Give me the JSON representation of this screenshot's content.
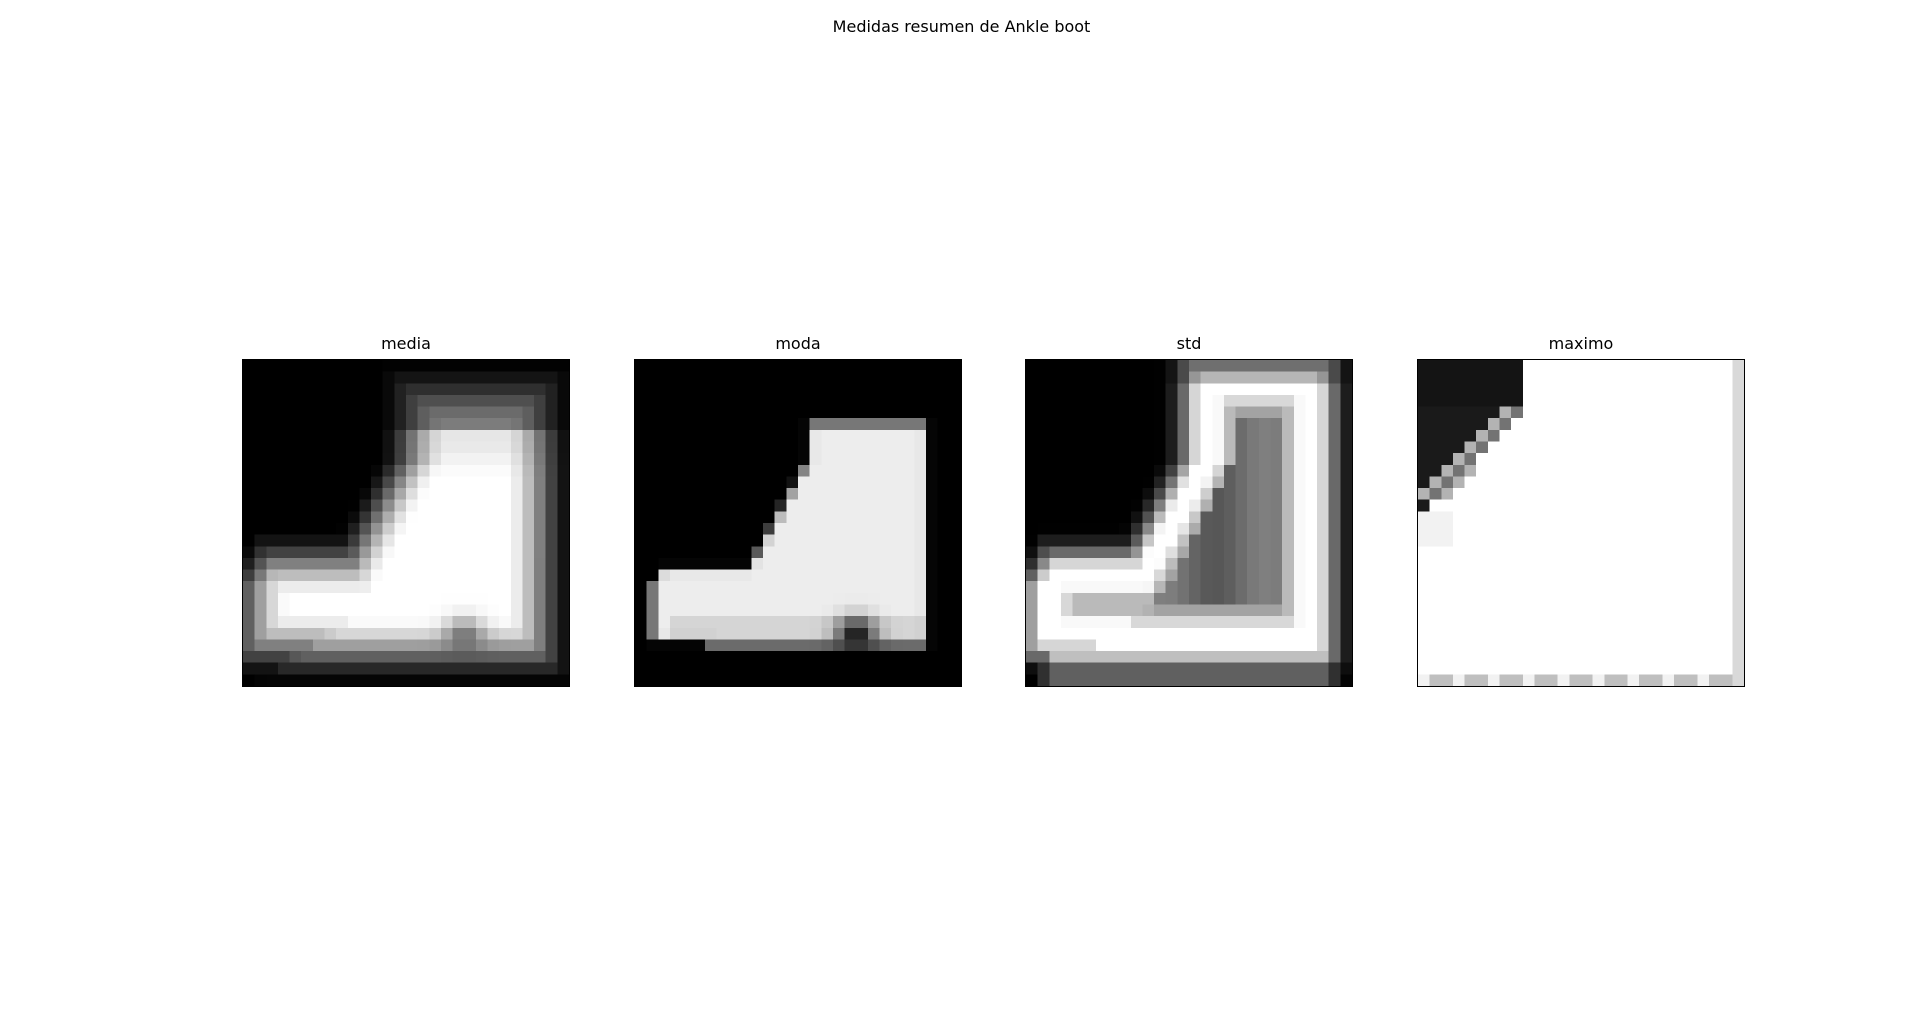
{
  "figure": {
    "suptitle": "Medidas resumen de Ankle boot"
  },
  "panels": [
    {
      "title": "media",
      "rendering": "grayscale-image"
    },
    {
      "title": "moda",
      "rendering": "grayscale-image"
    },
    {
      "title": "std",
      "rendering": "grayscale-image"
    },
    {
      "title": "maximo",
      "rendering": "grayscale-image"
    }
  ],
  "colors": {
    "background": "#ffffff",
    "image_dark": "#000000",
    "image_light": "#ffffff"
  }
}
